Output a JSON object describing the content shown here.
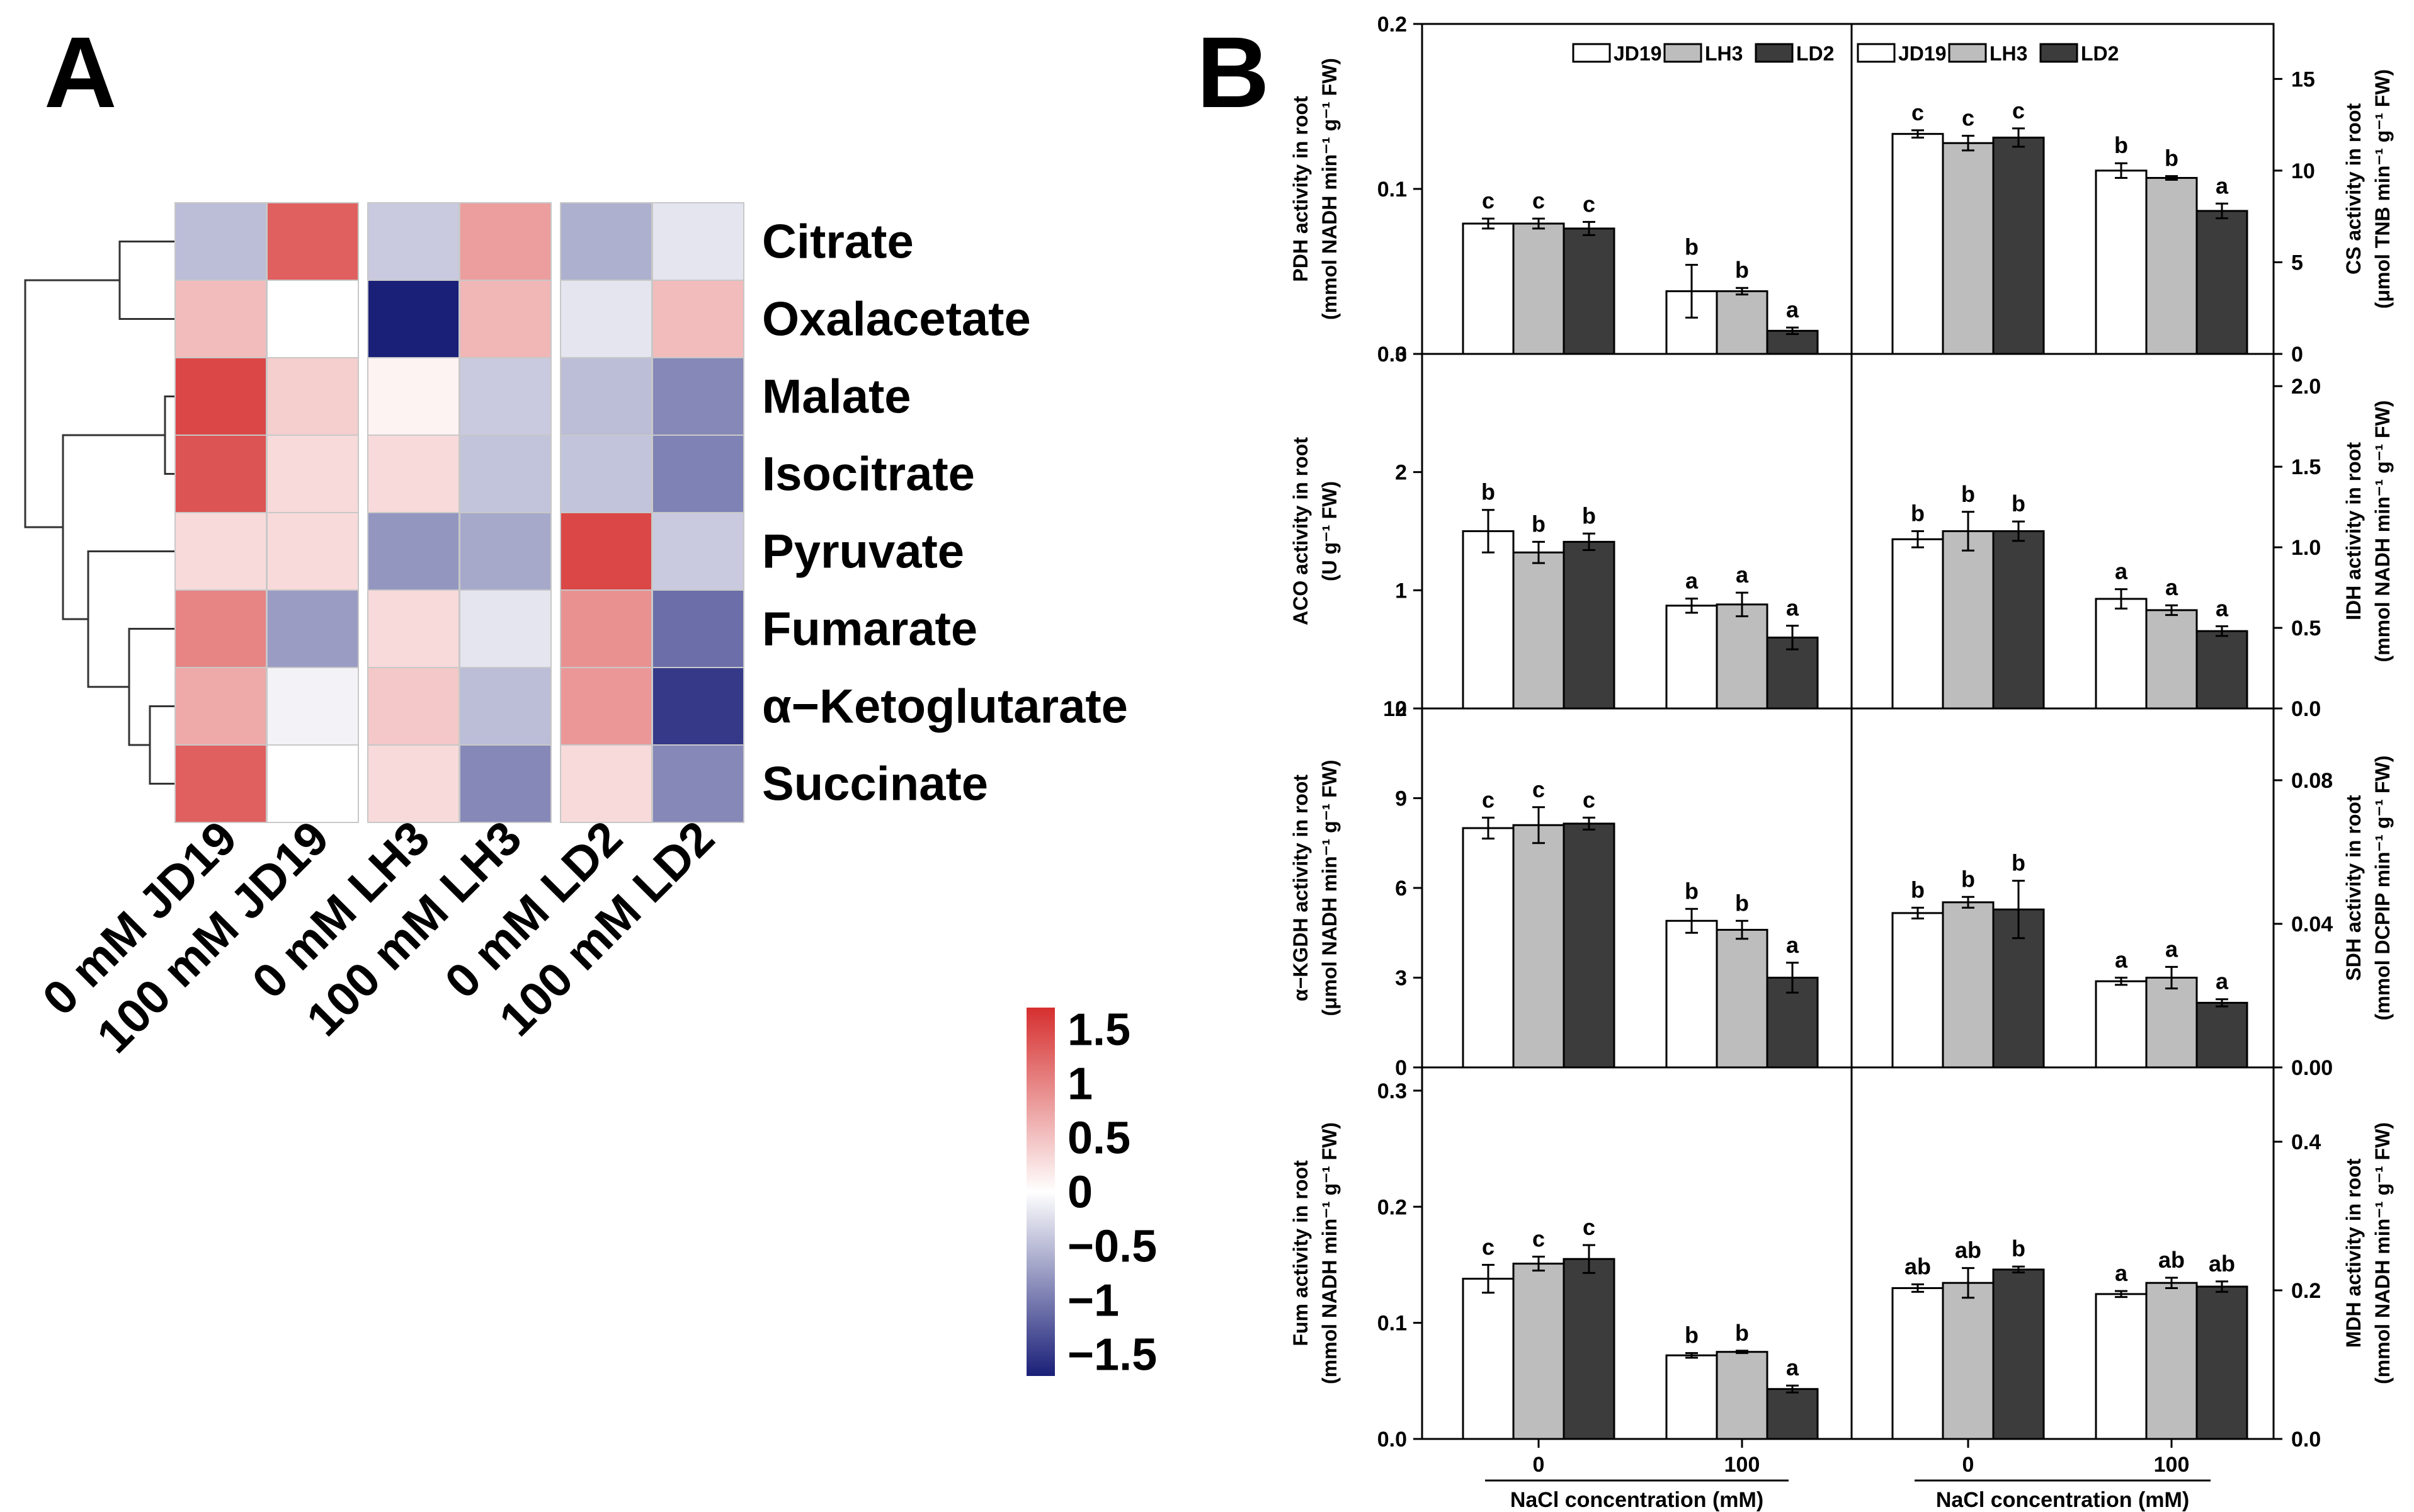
{
  "panels": {
    "a_label": "A",
    "b_label": "B"
  },
  "heatmap": {
    "rows": [
      "Citrate",
      "Oxalacetate",
      "Malate",
      "Isocitrate",
      "Pyruvate",
      "Fumarate",
      "α−Ketoglutarate",
      "Succinate"
    ],
    "columns": [
      "0 mM JD19",
      "100 mM JD19",
      "0 mM LH3",
      "100 mM LH3",
      "0 mM LD2",
      "100 mM LD2"
    ],
    "values": [
      [
        -0.5,
        1.3,
        -0.4,
        0.8,
        -0.6,
        -0.2
      ],
      [
        0.55,
        0.0,
        -1.7,
        0.6,
        -0.2,
        0.55
      ],
      [
        1.5,
        0.4,
        0.1,
        -0.4,
        -0.5,
        -0.9
      ],
      [
        1.4,
        0.3,
        0.3,
        -0.45,
        -0.45,
        -0.95
      ],
      [
        0.3,
        0.3,
        -0.8,
        -0.65,
        1.5,
        -0.4
      ],
      [
        1.0,
        -0.75,
        0.3,
        -0.2,
        0.9,
        -1.1
      ],
      [
        0.7,
        -0.1,
        0.45,
        -0.5,
        0.85,
        -1.5
      ],
      [
        1.3,
        0.0,
        0.3,
        -0.9,
        0.3,
        -0.9
      ]
    ],
    "color_high": "#d62f2f",
    "color_mid": "#ffffff",
    "color_low": "#1a1f78",
    "legend_ticks": [
      "1.5",
      "1",
      "0.5",
      "0",
      "−0.5",
      "−1",
      "−1.5"
    ],
    "legend_values": [
      1.5,
      1,
      0.5,
      0,
      -0.5,
      -1,
      -1.5
    ]
  },
  "chart_data": [
    {
      "type": "bar",
      "id": "pdh",
      "ylabel_line1": "PDH activity in root",
      "ylabel_line2": "(mmol NADH min⁻¹ g⁻¹ FW)",
      "ylim": [
        0,
        0.2
      ],
      "yticks": [
        "0.0",
        "0.1",
        "0.2"
      ],
      "ytick_values": [
        0,
        0.1,
        0.2
      ],
      "groups": [
        "0",
        "100"
      ],
      "series": [
        {
          "name": "JD19",
          "values": [
            0.079,
            0.038
          ],
          "errors": [
            0.003,
            0.016
          ],
          "letters": [
            "c",
            "b"
          ]
        },
        {
          "name": "LH3",
          "values": [
            0.079,
            0.038
          ],
          "errors": [
            0.003,
            0.002
          ],
          "letters": [
            "c",
            "b"
          ]
        },
        {
          "name": "LD2",
          "values": [
            0.076,
            0.014
          ],
          "errors": [
            0.004,
            0.002
          ],
          "letters": [
            "c",
            "a"
          ]
        }
      ]
    },
    {
      "type": "bar",
      "id": "cs",
      "ylabel_line1": "CS activity in root",
      "ylabel_line2": "(μmol TNB min⁻¹ g⁻¹ FW)",
      "ylim": [
        0,
        18
      ],
      "yticks": [
        "0",
        "5",
        "10",
        "15"
      ],
      "ytick_values": [
        0,
        5,
        10,
        15
      ],
      "groups": [
        "0",
        "100"
      ],
      "series": [
        {
          "name": "JD19",
          "values": [
            12.0,
            10.0
          ],
          "errors": [
            0.2,
            0.4
          ],
          "letters": [
            "c",
            "b"
          ]
        },
        {
          "name": "LH3",
          "values": [
            11.5,
            9.6
          ],
          "errors": [
            0.4,
            0.1
          ],
          "letters": [
            "c",
            "b"
          ]
        },
        {
          "name": "LD2",
          "values": [
            11.8,
            7.8
          ],
          "errors": [
            0.5,
            0.4
          ],
          "letters": [
            "c",
            "a"
          ]
        }
      ]
    },
    {
      "type": "bar",
      "id": "aco",
      "ylabel_line1": "ACO activity in root",
      "ylabel_line2": "(U g⁻¹ FW)",
      "ylim": [
        0,
        3
      ],
      "yticks": [
        "0",
        "1",
        "2",
        "3"
      ],
      "ytick_values": [
        0,
        1,
        2,
        3
      ],
      "groups": [
        "0",
        "100"
      ],
      "series": [
        {
          "name": "JD19",
          "values": [
            1.5,
            0.87
          ],
          "errors": [
            0.18,
            0.06
          ],
          "letters": [
            "b",
            "a"
          ]
        },
        {
          "name": "LH3",
          "values": [
            1.32,
            0.88
          ],
          "errors": [
            0.09,
            0.1
          ],
          "letters": [
            "b",
            "a"
          ]
        },
        {
          "name": "LD2",
          "values": [
            1.41,
            0.6
          ],
          "errors": [
            0.07,
            0.1
          ],
          "letters": [
            "b",
            "a"
          ]
        }
      ]
    },
    {
      "type": "bar",
      "id": "idh",
      "ylabel_line1": "IDH activity in root",
      "ylabel_line2": "(mmol NADH min⁻¹ g⁻¹ FW)",
      "ylim": [
        0,
        2.2
      ],
      "yticks": [
        "0.0",
        "0.5",
        "1.0",
        "1.5",
        "2.0"
      ],
      "ytick_values": [
        0,
        0.5,
        1,
        1.5,
        2
      ],
      "groups": [
        "0",
        "100"
      ],
      "series": [
        {
          "name": "JD19",
          "values": [
            1.05,
            0.68
          ],
          "errors": [
            0.05,
            0.06
          ],
          "letters": [
            "b",
            "a"
          ]
        },
        {
          "name": "LH3",
          "values": [
            1.1,
            0.61
          ],
          "errors": [
            0.12,
            0.03
          ],
          "letters": [
            "b",
            "a"
          ]
        },
        {
          "name": "LD2",
          "values": [
            1.1,
            0.48
          ],
          "errors": [
            0.06,
            0.03
          ],
          "letters": [
            "b",
            "a"
          ]
        }
      ]
    },
    {
      "type": "bar",
      "id": "kgdh",
      "ylabel_line1": "α−KGDH activity in root",
      "ylabel_line2": "(μmol NADH min⁻¹ g⁻¹ FW)",
      "ylim": [
        0,
        12
      ],
      "yticks": [
        "0",
        "3",
        "6",
        "9",
        "12"
      ],
      "ytick_values": [
        0,
        3,
        6,
        9,
        12
      ],
      "groups": [
        "0",
        "100"
      ],
      "series": [
        {
          "name": "JD19",
          "values": [
            8.0,
            4.9
          ],
          "errors": [
            0.35,
            0.4
          ],
          "letters": [
            "c",
            "b"
          ]
        },
        {
          "name": "LH3",
          "values": [
            8.1,
            4.6
          ],
          "errors": [
            0.6,
            0.3
          ],
          "letters": [
            "c",
            "b"
          ]
        },
        {
          "name": "LD2",
          "values": [
            8.15,
            3.0
          ],
          "errors": [
            0.2,
            0.5
          ],
          "letters": [
            "c",
            "a"
          ]
        }
      ]
    },
    {
      "type": "bar",
      "id": "sdh",
      "ylabel_line1": "SDH activity in root",
      "ylabel_line2": "(mmol DCPIP min⁻¹ g⁻¹ FW)",
      "ylim": [
        0,
        0.1
      ],
      "yticks": [
        "0.00",
        "0.04",
        "0.08"
      ],
      "ytick_values": [
        0,
        0.04,
        0.08
      ],
      "groups": [
        "0",
        "100"
      ],
      "series": [
        {
          "name": "JD19",
          "values": [
            0.043,
            0.024
          ],
          "errors": [
            0.0015,
            0.001
          ],
          "letters": [
            "b",
            "a"
          ]
        },
        {
          "name": "LH3",
          "values": [
            0.046,
            0.025
          ],
          "errors": [
            0.0015,
            0.003
          ],
          "letters": [
            "b",
            "a"
          ]
        },
        {
          "name": "LD2",
          "values": [
            0.044,
            0.018
          ],
          "errors": [
            0.008,
            0.001
          ],
          "letters": [
            "b",
            "a"
          ]
        }
      ]
    },
    {
      "type": "bar",
      "id": "fum",
      "ylabel_line1": "Fum activity in root",
      "ylabel_line2": "(mmol NADH min⁻¹ g⁻¹ FW)",
      "ylim": [
        0,
        0.32
      ],
      "yticks": [
        "0.0",
        "0.1",
        "0.2",
        "0.3"
      ],
      "ytick_values": [
        0,
        0.1,
        0.2,
        0.3
      ],
      "groups": [
        "0",
        "100"
      ],
      "series": [
        {
          "name": "JD19",
          "values": [
            0.138,
            0.072
          ],
          "errors": [
            0.012,
            0.002
          ],
          "letters": [
            "c",
            "b"
          ]
        },
        {
          "name": "LH3",
          "values": [
            0.151,
            0.075
          ],
          "errors": [
            0.006,
            0.001
          ],
          "letters": [
            "c",
            "b"
          ]
        },
        {
          "name": "LD2",
          "values": [
            0.155,
            0.043
          ],
          "errors": [
            0.012,
            0.003
          ],
          "letters": [
            "c",
            "a"
          ]
        }
      ]
    },
    {
      "type": "bar",
      "id": "mdh",
      "ylabel_line1": "MDH activity in root",
      "ylabel_line2": "(mmol NADH min⁻¹ g⁻¹ FW)",
      "ylim": [
        0,
        0.5
      ],
      "yticks": [
        "0.0",
        "0.2",
        "0.4"
      ],
      "ytick_values": [
        0,
        0.2,
        0.4
      ],
      "groups": [
        "0",
        "100"
      ],
      "series": [
        {
          "name": "JD19",
          "values": [
            0.203,
            0.195
          ],
          "errors": [
            0.005,
            0.004
          ],
          "letters": [
            "ab",
            "a"
          ]
        },
        {
          "name": "LH3",
          "values": [
            0.21,
            0.21
          ],
          "errors": [
            0.02,
            0.007
          ],
          "letters": [
            "ab",
            "ab"
          ]
        },
        {
          "name": "LD2",
          "values": [
            0.228,
            0.205
          ],
          "errors": [
            0.004,
            0.007
          ],
          "letters": [
            "b",
            "ab"
          ]
        }
      ]
    }
  ],
  "bar_legend": [
    "JD19",
    "LH3",
    "LD2"
  ],
  "bar_colors": {
    "JD19": "#ffffff",
    "LH3": "#bdbdbd",
    "LD2": "#3c3c3c"
  },
  "xaxis_title": "NaCl concentration (mM)"
}
